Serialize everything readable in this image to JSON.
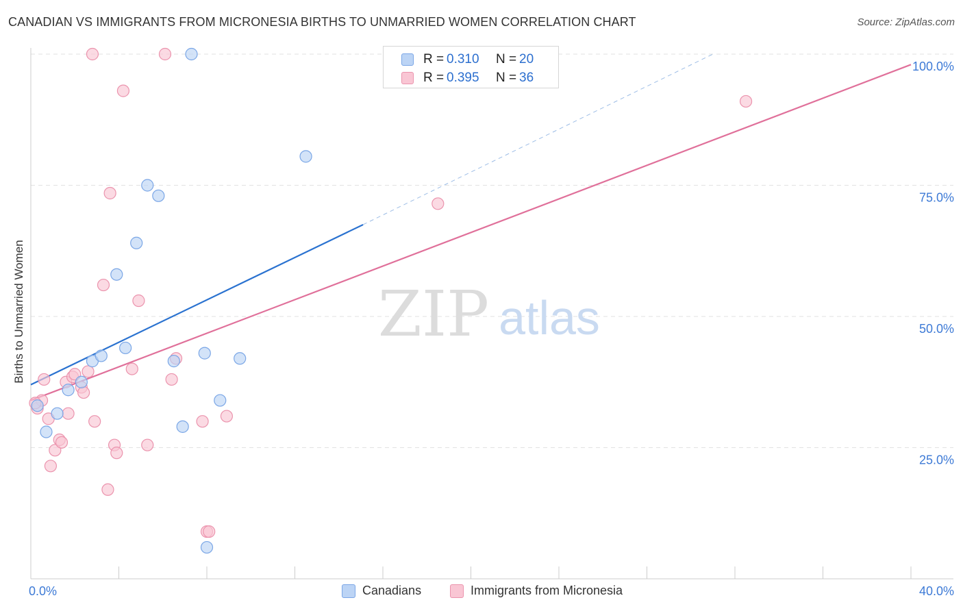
{
  "header": {
    "title": "CANADIAN VS IMMIGRANTS FROM MICRONESIA BIRTHS TO UNMARRIED WOMEN CORRELATION CHART",
    "source": "Source: ZipAtlas.com"
  },
  "watermark": {
    "zip": "ZIP",
    "atlas": "atlas"
  },
  "legend": {
    "r_label": "R =",
    "n_label": "N =",
    "series": [
      {
        "name": "Canadians",
        "r": "0.310",
        "n": "20"
      },
      {
        "name": "Immigrants from Micronesia",
        "r": "0.395",
        "n": "36"
      }
    ]
  },
  "colors": {
    "blue_fill": "#bcd4f5",
    "blue_stroke": "#7aa6e6",
    "blue_line": "#2a72d0",
    "pink_fill": "#f9c6d4",
    "pink_stroke": "#eb93ad",
    "pink_line": "#e0709a",
    "tick_text": "#3d7ad6"
  },
  "chart_data": {
    "type": "scatter",
    "title": "CANADIAN VS IMMIGRANTS FROM MICRONESIA BIRTHS TO UNMARRIED WOMEN CORRELATION CHART",
    "xlabel": "",
    "ylabel": "Births to Unmarried Women",
    "xlim": [
      0,
      40
    ],
    "ylim": [
      0,
      100
    ],
    "x_tick_labels": [
      {
        "value": 0,
        "label": "0.0%"
      },
      {
        "value": 40,
        "label": "40.0%"
      }
    ],
    "y_tick_labels": [
      {
        "value": 25,
        "label": "25.0%"
      },
      {
        "value": 50,
        "label": "50.0%"
      },
      {
        "value": 75,
        "label": "75.0%"
      },
      {
        "value": 100,
        "label": "100.0%"
      }
    ],
    "series": [
      {
        "name": "Canadians",
        "points": [
          [
            0.3,
            33.0
          ],
          [
            0.7,
            28.0
          ],
          [
            1.2,
            31.5
          ],
          [
            1.7,
            36.0
          ],
          [
            2.3,
            37.5
          ],
          [
            2.8,
            41.5
          ],
          [
            3.2,
            42.5
          ],
          [
            3.9,
            58.0
          ],
          [
            4.3,
            44.0
          ],
          [
            4.8,
            64.0
          ],
          [
            5.3,
            75.0
          ],
          [
            5.8,
            73.0
          ],
          [
            6.5,
            41.5
          ],
          [
            6.9,
            29.0
          ],
          [
            7.3,
            100.0
          ],
          [
            8.0,
            6.0
          ],
          [
            7.9,
            43.0
          ],
          [
            8.6,
            34.0
          ],
          [
            9.5,
            42.0
          ],
          [
            12.5,
            80.5
          ]
        ],
        "trend": {
          "x": [
            0,
            15.1
          ],
          "y": [
            37.0,
            67.5
          ],
          "dashed_to": {
            "x": 31.0,
            "y": 100.0
          }
        }
      },
      {
        "name": "Immigrants from Micronesia",
        "points": [
          [
            0.3,
            32.5
          ],
          [
            0.5,
            34.0
          ],
          [
            0.6,
            38.0
          ],
          [
            0.8,
            30.5
          ],
          [
            0.9,
            21.5
          ],
          [
            1.1,
            24.5
          ],
          [
            1.3,
            26.5
          ],
          [
            1.4,
            26.0
          ],
          [
            1.6,
            37.5
          ],
          [
            1.7,
            31.5
          ],
          [
            1.9,
            38.5
          ],
          [
            2.0,
            39.0
          ],
          [
            2.3,
            36.5
          ],
          [
            2.4,
            35.5
          ],
          [
            2.6,
            39.5
          ],
          [
            2.9,
            30.0
          ],
          [
            2.8,
            100.0
          ],
          [
            3.3,
            56.0
          ],
          [
            3.5,
            17.0
          ],
          [
            3.6,
            73.5
          ],
          [
            3.8,
            25.5
          ],
          [
            3.9,
            24.0
          ],
          [
            4.2,
            93.0
          ],
          [
            4.6,
            40.0
          ],
          [
            4.9,
            53.0
          ],
          [
            5.3,
            25.5
          ],
          [
            6.1,
            100.0
          ],
          [
            6.4,
            38.0
          ],
          [
            6.6,
            42.0
          ],
          [
            7.8,
            30.0
          ],
          [
            8.0,
            9.0
          ],
          [
            8.1,
            9.0
          ],
          [
            8.9,
            31.0
          ],
          [
            18.5,
            71.5
          ],
          [
            32.5,
            91.0
          ],
          [
            0.2,
            33.5
          ]
        ],
        "trend": {
          "x": [
            0,
            40
          ],
          "y": [
            34.0,
            98.0
          ]
        }
      }
    ]
  }
}
